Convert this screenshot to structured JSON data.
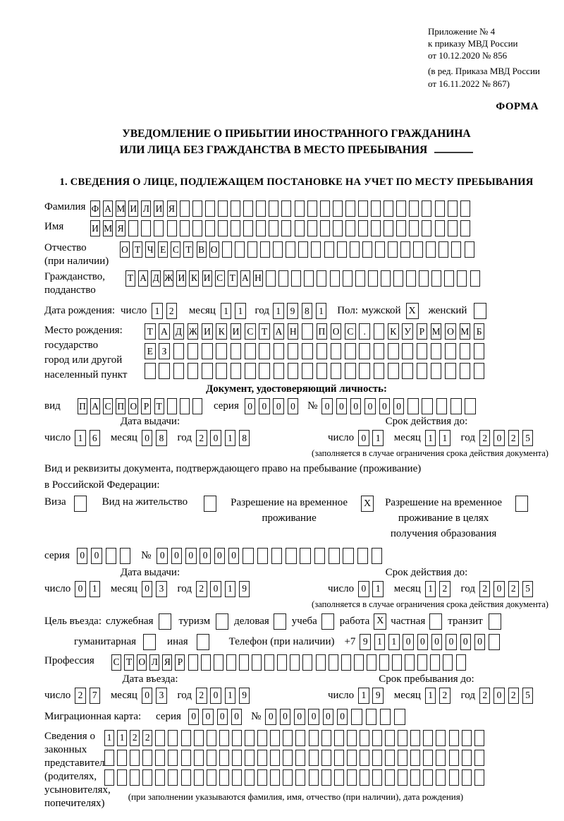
{
  "page": {
    "appendix": [
      "Приложение № 4",
      "к приказу МВД России",
      "от 10.12.2020 № 856"
    ],
    "amendment": [
      "(в ред. Приказа МВД России",
      "от 16.11.2022 № 867)"
    ],
    "form_label": "ФОРМА",
    "title1": "УВЕДОМЛЕНИЕ О ПРИБЫТИИ ИНОСТРАННОГО ГРАЖДАНИНА",
    "title2": "ИЛИ ЛИЦА БЕЗ ГРАЖДАНСТВА В МЕСТО ПРЕБЫВАНИЯ",
    "section1": "1. СВЕДЕНИЯ О ЛИЦЕ, ПОДЛЕЖАЩЕМ ПОСТАНОВКЕ НА УЧЕТ ПО МЕСТУ ПРЕБЫВАНИЯ"
  },
  "labels": {
    "day": "число",
    "month": "месяц",
    "year": "год",
    "seriya": "серия",
    "num": "№",
    "validity_note": "(заполняется в случае ограничения срока действия документа)"
  },
  "surname": {
    "label": "Фамилия",
    "cells": {
      "value": "ФАМИЛИЯ",
      "len": 30
    }
  },
  "firstname": {
    "label": "Имя",
    "cells": {
      "value": "ИМЯ",
      "len": 30
    }
  },
  "patronymic": {
    "label1": "Отчество",
    "label2": "(при наличии)",
    "cells": {
      "value": "ОТЧЕСТВО",
      "len": 28
    }
  },
  "citizenship": {
    "label1": "Гражданство,",
    "label2": "подданство",
    "cells": {
      "value": "ТАДЖИКИСТАН",
      "len": 28
    }
  },
  "birth": {
    "label": "Дата рождения:",
    "day": {
      "value": "12",
      "len": 2
    },
    "month": {
      "value": "11",
      "len": 2
    },
    "year": {
      "value": "1981",
      "len": 4
    }
  },
  "sex": {
    "label": "Пол:",
    "male_label": "мужской",
    "male": "X",
    "female_label": "женский",
    "female": ""
  },
  "birthplace": {
    "labels": [
      "Место рождения:",
      "государство",
      "город или другой",
      "населенный пункт"
    ],
    "row1": {
      "value": "ТАДЖИКИСТАН ПОС. КУРМОМБ",
      "len": 24
    },
    "row2": {
      "value": "ЕЗ",
      "len": 24
    },
    "row3": {
      "value": "",
      "len": 24
    }
  },
  "identity_doc": {
    "heading": "Документ, удостоверяющий личность:",
    "vid_label": "вид",
    "vid": {
      "value": "ПАСПОРТ",
      "len": 10
    },
    "series": {
      "value": "0000",
      "len": 4
    },
    "number": {
      "value": "000000",
      "len": 11
    },
    "issue": {
      "heading": "Дата выдачи:",
      "day": {
        "value": "16",
        "len": 2
      },
      "month": {
        "value": "08",
        "len": 2
      },
      "year": {
        "value": "2018",
        "len": 4
      }
    },
    "valid": {
      "heading": "Срок действия до:",
      "day": {
        "value": "01",
        "len": 2
      },
      "month": {
        "value": "11",
        "len": 2
      },
      "year": {
        "value": "2025",
        "len": 4
      }
    }
  },
  "right_doc": {
    "line1": "Вид и реквизиты документа, подтверждающего право на пребывание (проживание)",
    "line2": "в Российской Федерации:",
    "visa_label": "Виза",
    "visa": "",
    "residence_label": "Вид на жительство",
    "residence": "",
    "rvp_label1": "Разрешение на временное",
    "rvp_label2": "проживание",
    "rvp": "X",
    "rvpo_label1": "Разрешение на временное",
    "rvpo_label2": "проживание в целях",
    "rvpo_label3": "получения образования",
    "rvpo": "",
    "series": {
      "value": "00",
      "len": 4
    },
    "number": {
      "value": "000000",
      "len": 16
    },
    "issue": {
      "heading": "Дата выдачи:",
      "day": {
        "value": "01",
        "len": 2
      },
      "month": {
        "value": "03",
        "len": 2
      },
      "year": {
        "value": "2019",
        "len": 4
      }
    },
    "valid": {
      "heading": "Срок действия до:",
      "day": {
        "value": "01",
        "len": 2
      },
      "month": {
        "value": "12",
        "len": 2
      },
      "year": {
        "value": "2025",
        "len": 4
      }
    }
  },
  "purpose": {
    "label": "Цель въезда:",
    "options": [
      {
        "label": "служебная",
        "value": ""
      },
      {
        "label": "туризм",
        "value": ""
      },
      {
        "label": "деловая",
        "value": ""
      },
      {
        "label": "учеба",
        "value": ""
      },
      {
        "label": "работа",
        "value": "X"
      },
      {
        "label": "частная",
        "value": ""
      },
      {
        "label": "транзит",
        "value": ""
      }
    ],
    "options2": [
      {
        "label": "гуманитарная",
        "value": ""
      },
      {
        "label": "иная",
        "value": ""
      }
    ]
  },
  "phone": {
    "label": "Телефон (при наличии)",
    "prefix": "+7",
    "cells": {
      "value": "911000000",
      "len": 10
    }
  },
  "profession": {
    "label": "Профессия",
    "cells": {
      "value": "СТОЛЯР",
      "len": 28
    }
  },
  "entry": {
    "issue": {
      "heading": "Дата въезда:",
      "day": {
        "value": "27",
        "len": 2
      },
      "month": {
        "value": "03",
        "len": 2
      },
      "year": {
        "value": "2019",
        "len": 4
      }
    },
    "valid": {
      "heading": "Срок пребывания до:",
      "day": {
        "value": "19",
        "len": 2
      },
      "month": {
        "value": "12",
        "len": 2
      },
      "year": {
        "value": "2025",
        "len": 4
      }
    }
  },
  "migration_card": {
    "label": "Миграционная карта:",
    "series": {
      "value": "0000",
      "len": 4
    },
    "number": {
      "value": "000000",
      "len": 10
    }
  },
  "representatives": {
    "labels": [
      "Сведения о",
      "законных",
      "представителях",
      "(родителях,",
      "усыновителях,",
      "попечителях)"
    ],
    "row1": {
      "value": "1122",
      "len": 30
    },
    "row2": {
      "value": "",
      "len": 30
    },
    "row3": {
      "value": "",
      "len": 30
    },
    "caption": "(при заполнении указываются фамилия, имя, отчество (при наличии), дата рождения)"
  }
}
